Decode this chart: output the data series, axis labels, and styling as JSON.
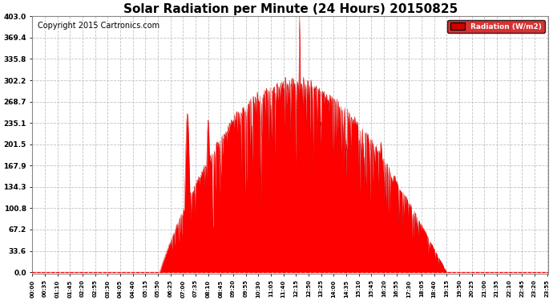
{
  "title": "Solar Radiation per Minute (24 Hours) 20150825",
  "copyright": "Copyright 2015 Cartronics.com",
  "legend_label": "Radiation (W/m2)",
  "ylabel_values": [
    0.0,
    33.6,
    67.2,
    100.8,
    134.3,
    167.9,
    201.5,
    235.1,
    268.7,
    302.2,
    335.8,
    369.4,
    403.0
  ],
  "ymax": 403.0,
  "fill_color": "#FF0000",
  "line_color": "#CC0000",
  "bg_color": "#FFFFFF",
  "grid_color": "#AAAAAA",
  "legend_bg": "#CC0000",
  "legend_text_color": "#FFFFFF",
  "title_fontsize": 11,
  "copyright_fontsize": 7,
  "total_minutes": 1440,
  "tick_interval": 35
}
